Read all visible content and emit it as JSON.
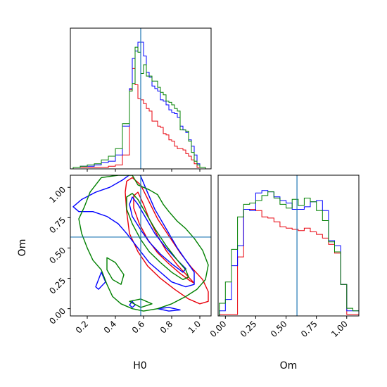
{
  "chart_data": {
    "type": "corner",
    "parameters": [
      "H0",
      "Om"
    ],
    "truth": {
      "H0": 0.58,
      "Om": 0.59
    },
    "colors": {
      "truth": "#1f77b4",
      "red": "#e8000b",
      "blue": "#0000ff",
      "green": "#008000"
    },
    "axes": {
      "H0": {
        "label": "H0",
        "range": [
          0.08,
          1.08
        ],
        "ticks": [
          0.2,
          0.4,
          0.6,
          0.8,
          1.0
        ],
        "tick_labels": [
          "0.2",
          "0.4",
          "0.6",
          "0.8",
          "1.0"
        ]
      },
      "Om": {
        "label": "Om",
        "range": [
          -0.06,
          1.1
        ],
        "ticks": [
          0.0,
          0.25,
          0.5,
          0.75,
          1.0
        ],
        "tick_labels": [
          "0.00",
          "0.25",
          "0.50",
          "0.75",
          "1.00"
        ]
      }
    },
    "hist_H0": {
      "bin_edges": [
        0.1,
        0.15,
        0.2,
        0.25,
        0.3,
        0.35,
        0.4,
        0.45,
        0.5,
        0.52,
        0.54,
        0.56,
        0.58,
        0.6,
        0.62,
        0.64,
        0.66,
        0.68,
        0.7,
        0.72,
        0.74,
        0.76,
        0.78,
        0.8,
        0.82,
        0.84,
        0.86,
        0.88,
        0.9,
        0.92,
        0.94,
        0.96,
        0.98,
        1.0,
        1.02,
        1.04
      ],
      "series": [
        {
          "color": "red",
          "counts": [
            0,
            0,
            0,
            0,
            0,
            0.01,
            0.02,
            0.1,
            0.62,
            0.79,
            0.66,
            0.55,
            0.54,
            0.51,
            0.47,
            0.45,
            0.37,
            0.37,
            0.33,
            0.32,
            0.27,
            0.26,
            0.22,
            0.21,
            0.17,
            0.15,
            0.15,
            0.14,
            0.11,
            0.09,
            0.06,
            0.03,
            0,
            0,
            0
          ]
        },
        {
          "color": "blue",
          "counts": [
            0,
            0.01,
            0.01,
            0.02,
            0.04,
            0.05,
            0.1,
            0.33,
            0.63,
            0.87,
            0.93,
            1.0,
            1.0,
            0.89,
            0.76,
            0.72,
            0.65,
            0.63,
            0.61,
            0.54,
            0.53,
            0.5,
            0.46,
            0.44,
            0.43,
            0.4,
            0.33,
            0.3,
            0.28,
            0.22,
            0.17,
            0.1,
            0.03,
            0,
            0
          ]
        },
        {
          "color": "green",
          "counts": [
            0,
            0.01,
            0.02,
            0.03,
            0.06,
            0.09,
            0.15,
            0.35,
            0.61,
            0.67,
            0.96,
            0.92,
            0.75,
            0.82,
            0.73,
            0.73,
            0.69,
            0.69,
            0.64,
            0.6,
            0.58,
            0.53,
            0.52,
            0.5,
            0.47,
            0.45,
            0.3,
            0.3,
            0.29,
            0.21,
            0.12,
            0.05,
            0.02,
            0,
            0
          ]
        }
      ]
    },
    "hist_Om": {
      "bin_edges": [
        -0.05,
        0.0,
        0.05,
        0.1,
        0.15,
        0.2,
        0.25,
        0.3,
        0.35,
        0.4,
        0.45,
        0.5,
        0.55,
        0.6,
        0.65,
        0.7,
        0.75,
        0.8,
        0.85,
        0.9,
        0.95,
        1.0,
        1.05,
        1.1
      ],
      "series": [
        {
          "color": "red",
          "counts": [
            0,
            0,
            0,
            0.46,
            0.84,
            0.84,
            0.83,
            0.78,
            0.77,
            0.74,
            0.7,
            0.69,
            0.68,
            0.67,
            0.69,
            0.66,
            0.64,
            0.61,
            0.56,
            0.49,
            0.24,
            0,
            0
          ]
        },
        {
          "color": "blue",
          "counts": [
            0.03,
            0.12,
            0.39,
            0.55,
            0.84,
            0.83,
            0.97,
            0.99,
            0.98,
            0.94,
            0.91,
            0.89,
            0.84,
            0.84,
            0.86,
            0.9,
            0.91,
            0.83,
            0.59,
            0.55,
            0.24,
            0.03,
            0.03
          ]
        },
        {
          "color": "green",
          "counts": [
            0.09,
            0.26,
            0.52,
            0.78,
            0.88,
            0.89,
            0.91,
            0.95,
            0.98,
            0.93,
            0.88,
            0.85,
            0.92,
            0.87,
            0.93,
            0.9,
            0.83,
            0.75,
            0.58,
            0.5,
            0.24,
            0.05,
            0.03
          ]
        }
      ]
    },
    "contours_2d": [
      {
        "color": "red",
        "level": "inner",
        "points": [
          [
            0.56,
            0.96
          ],
          [
            0.6,
            0.86
          ],
          [
            0.64,
            0.74
          ],
          [
            0.7,
            0.6
          ],
          [
            0.76,
            0.48
          ],
          [
            0.84,
            0.36
          ],
          [
            0.92,
            0.26
          ],
          [
            0.96,
            0.21
          ],
          [
            0.93,
            0.23
          ],
          [
            0.86,
            0.29
          ],
          [
            0.78,
            0.37
          ],
          [
            0.7,
            0.46
          ],
          [
            0.63,
            0.57
          ],
          [
            0.57,
            0.7
          ],
          [
            0.53,
            0.83
          ],
          [
            0.53,
            0.93
          ]
        ]
      },
      {
        "color": "red",
        "level": "outer",
        "points": [
          [
            0.52,
            1.08
          ],
          [
            0.58,
            1.02
          ],
          [
            0.64,
            0.88
          ],
          [
            0.7,
            0.74
          ],
          [
            0.78,
            0.6
          ],
          [
            0.86,
            0.46
          ],
          [
            0.94,
            0.34
          ],
          [
            1.02,
            0.24
          ],
          [
            1.06,
            0.14
          ],
          [
            1.06,
            0.06
          ],
          [
            1.0,
            0.04
          ],
          [
            0.92,
            0.08
          ],
          [
            0.82,
            0.16
          ],
          [
            0.72,
            0.25
          ],
          [
            0.63,
            0.35
          ],
          [
            0.56,
            0.47
          ],
          [
            0.5,
            0.62
          ],
          [
            0.48,
            0.8
          ],
          [
            0.47,
            0.96
          ],
          [
            0.48,
            1.05
          ]
        ]
      },
      {
        "color": "blue",
        "level": "inner",
        "points": [
          [
            0.52,
            0.92
          ],
          [
            0.56,
            0.86
          ],
          [
            0.62,
            0.74
          ],
          [
            0.68,
            0.62
          ],
          [
            0.76,
            0.5
          ],
          [
            0.84,
            0.4
          ],
          [
            0.9,
            0.33
          ],
          [
            0.88,
            0.3
          ],
          [
            0.8,
            0.37
          ],
          [
            0.72,
            0.45
          ],
          [
            0.64,
            0.55
          ],
          [
            0.58,
            0.65
          ],
          [
            0.52,
            0.76
          ],
          [
            0.5,
            0.86
          ]
        ]
      },
      {
        "color": "blue",
        "level": "outer",
        "points": [
          [
            0.57,
            1.12
          ],
          [
            0.62,
            0.98
          ],
          [
            0.68,
            0.82
          ],
          [
            0.76,
            0.66
          ],
          [
            0.84,
            0.5
          ],
          [
            0.9,
            0.4
          ],
          [
            0.96,
            0.3
          ],
          [
            0.96,
            0.2
          ],
          [
            0.9,
            0.18
          ],
          [
            0.8,
            0.22
          ],
          [
            0.72,
            0.3
          ],
          [
            0.64,
            0.38
          ],
          [
            0.56,
            0.5
          ],
          [
            0.48,
            0.62
          ],
          [
            0.42,
            0.7
          ],
          [
            0.34,
            0.76
          ],
          [
            0.24,
            0.8
          ],
          [
            0.14,
            0.8
          ],
          [
            0.1,
            0.84
          ],
          [
            0.16,
            0.9
          ],
          [
            0.26,
            0.96
          ],
          [
            0.36,
            1.0
          ],
          [
            0.45,
            1.06
          ],
          [
            0.52,
            1.12
          ]
        ]
      },
      {
        "color": "blue",
        "level": "outer-island",
        "points": [
          [
            0.26,
            0.18
          ],
          [
            0.3,
            0.3
          ],
          [
            0.33,
            0.22
          ],
          [
            0.28,
            0.16
          ]
        ]
      },
      {
        "color": "blue",
        "level": "outer-island",
        "points": [
          [
            0.5,
            0.03
          ],
          [
            0.52,
            0.06
          ],
          [
            0.54,
            0.03
          ],
          [
            0.52,
            0.01
          ]
        ]
      },
      {
        "color": "blue",
        "level": "outer-island",
        "points": [
          [
            0.7,
            0.0
          ],
          [
            0.78,
            -0.02
          ],
          [
            0.86,
            -0.01
          ],
          [
            0.78,
            0.01
          ]
        ]
      },
      {
        "color": "green",
        "level": "inner",
        "points": [
          [
            0.52,
            0.95
          ],
          [
            0.56,
            0.9
          ],
          [
            0.62,
            0.78
          ],
          [
            0.68,
            0.66
          ],
          [
            0.76,
            0.52
          ],
          [
            0.84,
            0.4
          ],
          [
            0.9,
            0.32
          ],
          [
            0.92,
            0.26
          ],
          [
            0.88,
            0.24
          ],
          [
            0.8,
            0.3
          ],
          [
            0.72,
            0.38
          ],
          [
            0.64,
            0.47
          ],
          [
            0.58,
            0.57
          ],
          [
            0.52,
            0.7
          ],
          [
            0.48,
            0.82
          ],
          [
            0.48,
            0.92
          ]
        ]
      },
      {
        "color": "green",
        "level": "outer",
        "points": [
          [
            0.3,
            1.08
          ],
          [
            0.42,
            1.1
          ],
          [
            0.52,
            1.1
          ],
          [
            0.56,
            1.02
          ],
          [
            0.64,
            0.98
          ],
          [
            0.7,
            0.94
          ],
          [
            0.74,
            0.86
          ],
          [
            0.78,
            0.8
          ],
          [
            0.84,
            0.72
          ],
          [
            0.9,
            0.66
          ],
          [
            0.96,
            0.58
          ],
          [
            1.02,
            0.48
          ],
          [
            1.06,
            0.36
          ],
          [
            1.04,
            0.24
          ],
          [
            0.98,
            0.16
          ],
          [
            0.9,
            0.1
          ],
          [
            0.8,
            0.04
          ],
          [
            0.7,
            0.0
          ],
          [
            0.6,
            -0.02
          ],
          [
            0.52,
            0.0
          ],
          [
            0.44,
            0.04
          ],
          [
            0.38,
            0.1
          ],
          [
            0.34,
            0.2
          ],
          [
            0.3,
            0.32
          ],
          [
            0.24,
            0.4
          ],
          [
            0.2,
            0.5
          ],
          [
            0.16,
            0.62
          ],
          [
            0.14,
            0.74
          ],
          [
            0.18,
            0.84
          ],
          [
            0.22,
            0.96
          ]
        ]
      },
      {
        "color": "green",
        "level": "outer-island",
        "points": [
          [
            0.34,
            0.42
          ],
          [
            0.4,
            0.38
          ],
          [
            0.46,
            0.28
          ],
          [
            0.44,
            0.2
          ],
          [
            0.38,
            0.24
          ],
          [
            0.34,
            0.32
          ]
        ]
      },
      {
        "color": "green",
        "level": "outer-island",
        "points": [
          [
            0.5,
            0.06
          ],
          [
            0.58,
            0.08
          ],
          [
            0.66,
            0.04
          ],
          [
            0.58,
            0.01
          ]
        ]
      }
    ]
  }
}
